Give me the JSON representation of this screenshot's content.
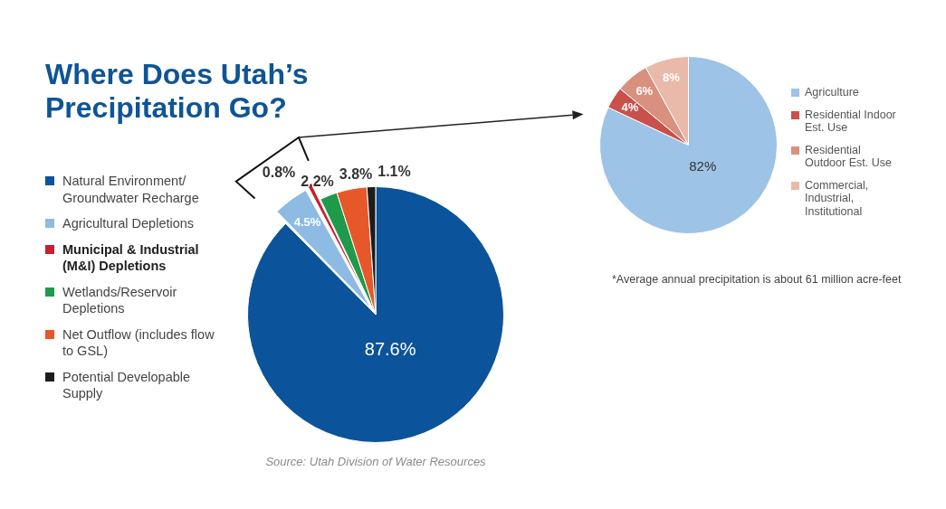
{
  "chart_data": [
    {
      "type": "pie",
      "title": "Where Does Utah’s Precipitation Go?",
      "categories": [
        "Natural Environment/Groundwater Recharge",
        "Agricultural Depletions",
        "Municipal & Industrial (M&I) Depletions",
        "Wetlands/Reservoir Depletions",
        "Net Outflow (includes flow to GSL)",
        "Potential Developable Supply"
      ],
      "values": [
        87.6,
        4.5,
        0.8,
        2.2,
        3.8,
        1.1
      ],
      "value_labels": [
        "87.6%",
        "4.5%",
        "0.8%",
        "2.2%",
        "3.8%",
        "1.1%"
      ],
      "colors": [
        "#0b539a",
        "#8dbbe3",
        "#c8202f",
        "#1f9a4b",
        "#e6582a",
        "#1d1d1d"
      ],
      "legend": "left",
      "data_labels": true,
      "source": "Source: Utah Division of Water Resources"
    },
    {
      "type": "pie",
      "categories": [
        "Agriculture",
        "Residential Indoor Est. Use",
        "Residential Outdoor Est. Use",
        "Commercial, Industrial, Institutional"
      ],
      "values": [
        82,
        4,
        6,
        8
      ],
      "value_labels": [
        "82%",
        "4%",
        "6%",
        "8%"
      ],
      "colors": [
        "#9dc3e6",
        "#c9504b",
        "#d9907f",
        "#e9b9aa"
      ],
      "legend": "right",
      "data_labels": true,
      "note": "*Average annual precipitation is about 61 million acre-feet"
    }
  ]
}
